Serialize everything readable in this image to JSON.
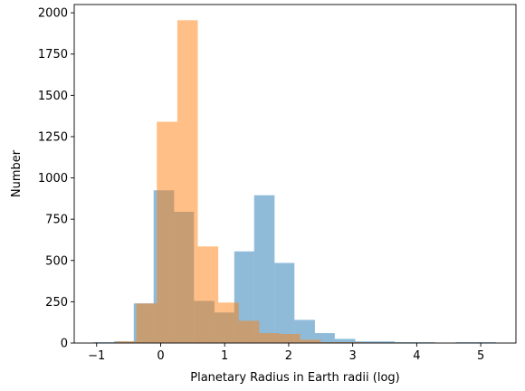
{
  "chart_data": {
    "type": "histogram",
    "title": "",
    "xlabel": "Planetary Radius in Earth radii (log)",
    "ylabel": "Number",
    "xlim": [
      -1.35,
      5.55
    ],
    "ylim": [
      0,
      2050
    ],
    "xticks": [
      -1,
      0,
      1,
      2,
      3,
      4,
      5
    ],
    "yticks": [
      0,
      250,
      500,
      750,
      1000,
      1250,
      1500,
      1750,
      2000
    ],
    "grid": false,
    "legend": "none",
    "series": [
      {
        "color": "#1f77b4",
        "alpha": 0.5,
        "bins": [
          {
            "x0": -1.05,
            "x1": -0.73,
            "value": 5
          },
          {
            "x0": -0.73,
            "x1": -0.42,
            "value": 10
          },
          {
            "x0": -0.42,
            "x1": -0.11,
            "value": 240
          },
          {
            "x0": -0.11,
            "x1": 0.21,
            "value": 925
          },
          {
            "x0": 0.21,
            "x1": 0.52,
            "value": 795
          },
          {
            "x0": 0.52,
            "x1": 0.84,
            "value": 255
          },
          {
            "x0": 0.84,
            "x1": 1.15,
            "value": 185
          },
          {
            "x0": 1.15,
            "x1": 1.46,
            "value": 555
          },
          {
            "x0": 1.46,
            "x1": 1.78,
            "value": 895
          },
          {
            "x0": 1.78,
            "x1": 2.09,
            "value": 485
          },
          {
            "x0": 2.09,
            "x1": 2.41,
            "value": 140
          },
          {
            "x0": 2.41,
            "x1": 2.72,
            "value": 60
          },
          {
            "x0": 2.72,
            "x1": 3.04,
            "value": 25
          },
          {
            "x0": 3.04,
            "x1": 3.35,
            "value": 10
          },
          {
            "x0": 3.35,
            "x1": 3.66,
            "value": 10
          },
          {
            "x0": 3.66,
            "x1": 3.98,
            "value": 5
          },
          {
            "x0": 3.98,
            "x1": 4.29,
            "value": 5
          },
          {
            "x0": 4.29,
            "x1": 4.61,
            "value": 0
          },
          {
            "x0": 4.61,
            "x1": 4.92,
            "value": 5
          },
          {
            "x0": 4.92,
            "x1": 5.24,
            "value": 5
          }
        ]
      },
      {
        "color": "#ff7f0e",
        "alpha": 0.5,
        "bins": [
          {
            "x0": -0.7,
            "x1": -0.38,
            "value": 10
          },
          {
            "x0": -0.38,
            "x1": -0.06,
            "value": 240
          },
          {
            "x0": -0.06,
            "x1": 0.26,
            "value": 1340
          },
          {
            "x0": 0.26,
            "x1": 0.58,
            "value": 1955
          },
          {
            "x0": 0.58,
            "x1": 0.9,
            "value": 585
          },
          {
            "x0": 0.9,
            "x1": 1.22,
            "value": 245
          },
          {
            "x0": 1.22,
            "x1": 1.54,
            "value": 135
          },
          {
            "x0": 1.54,
            "x1": 1.86,
            "value": 60
          },
          {
            "x0": 1.86,
            "x1": 2.18,
            "value": 55
          },
          {
            "x0": 2.18,
            "x1": 2.5,
            "value": 20
          },
          {
            "x0": 2.5,
            "x1": 2.82,
            "value": 5
          },
          {
            "x0": 2.82,
            "x1": 3.14,
            "value": 5
          },
          {
            "x0": 3.14,
            "x1": 3.46,
            "value": 3
          },
          {
            "x0": 3.46,
            "x1": 3.78,
            "value": 2
          },
          {
            "x0": 3.78,
            "x1": 4.1,
            "value": 2
          },
          {
            "x0": 4.1,
            "x1": 4.42,
            "value": 1
          }
        ]
      }
    ]
  }
}
